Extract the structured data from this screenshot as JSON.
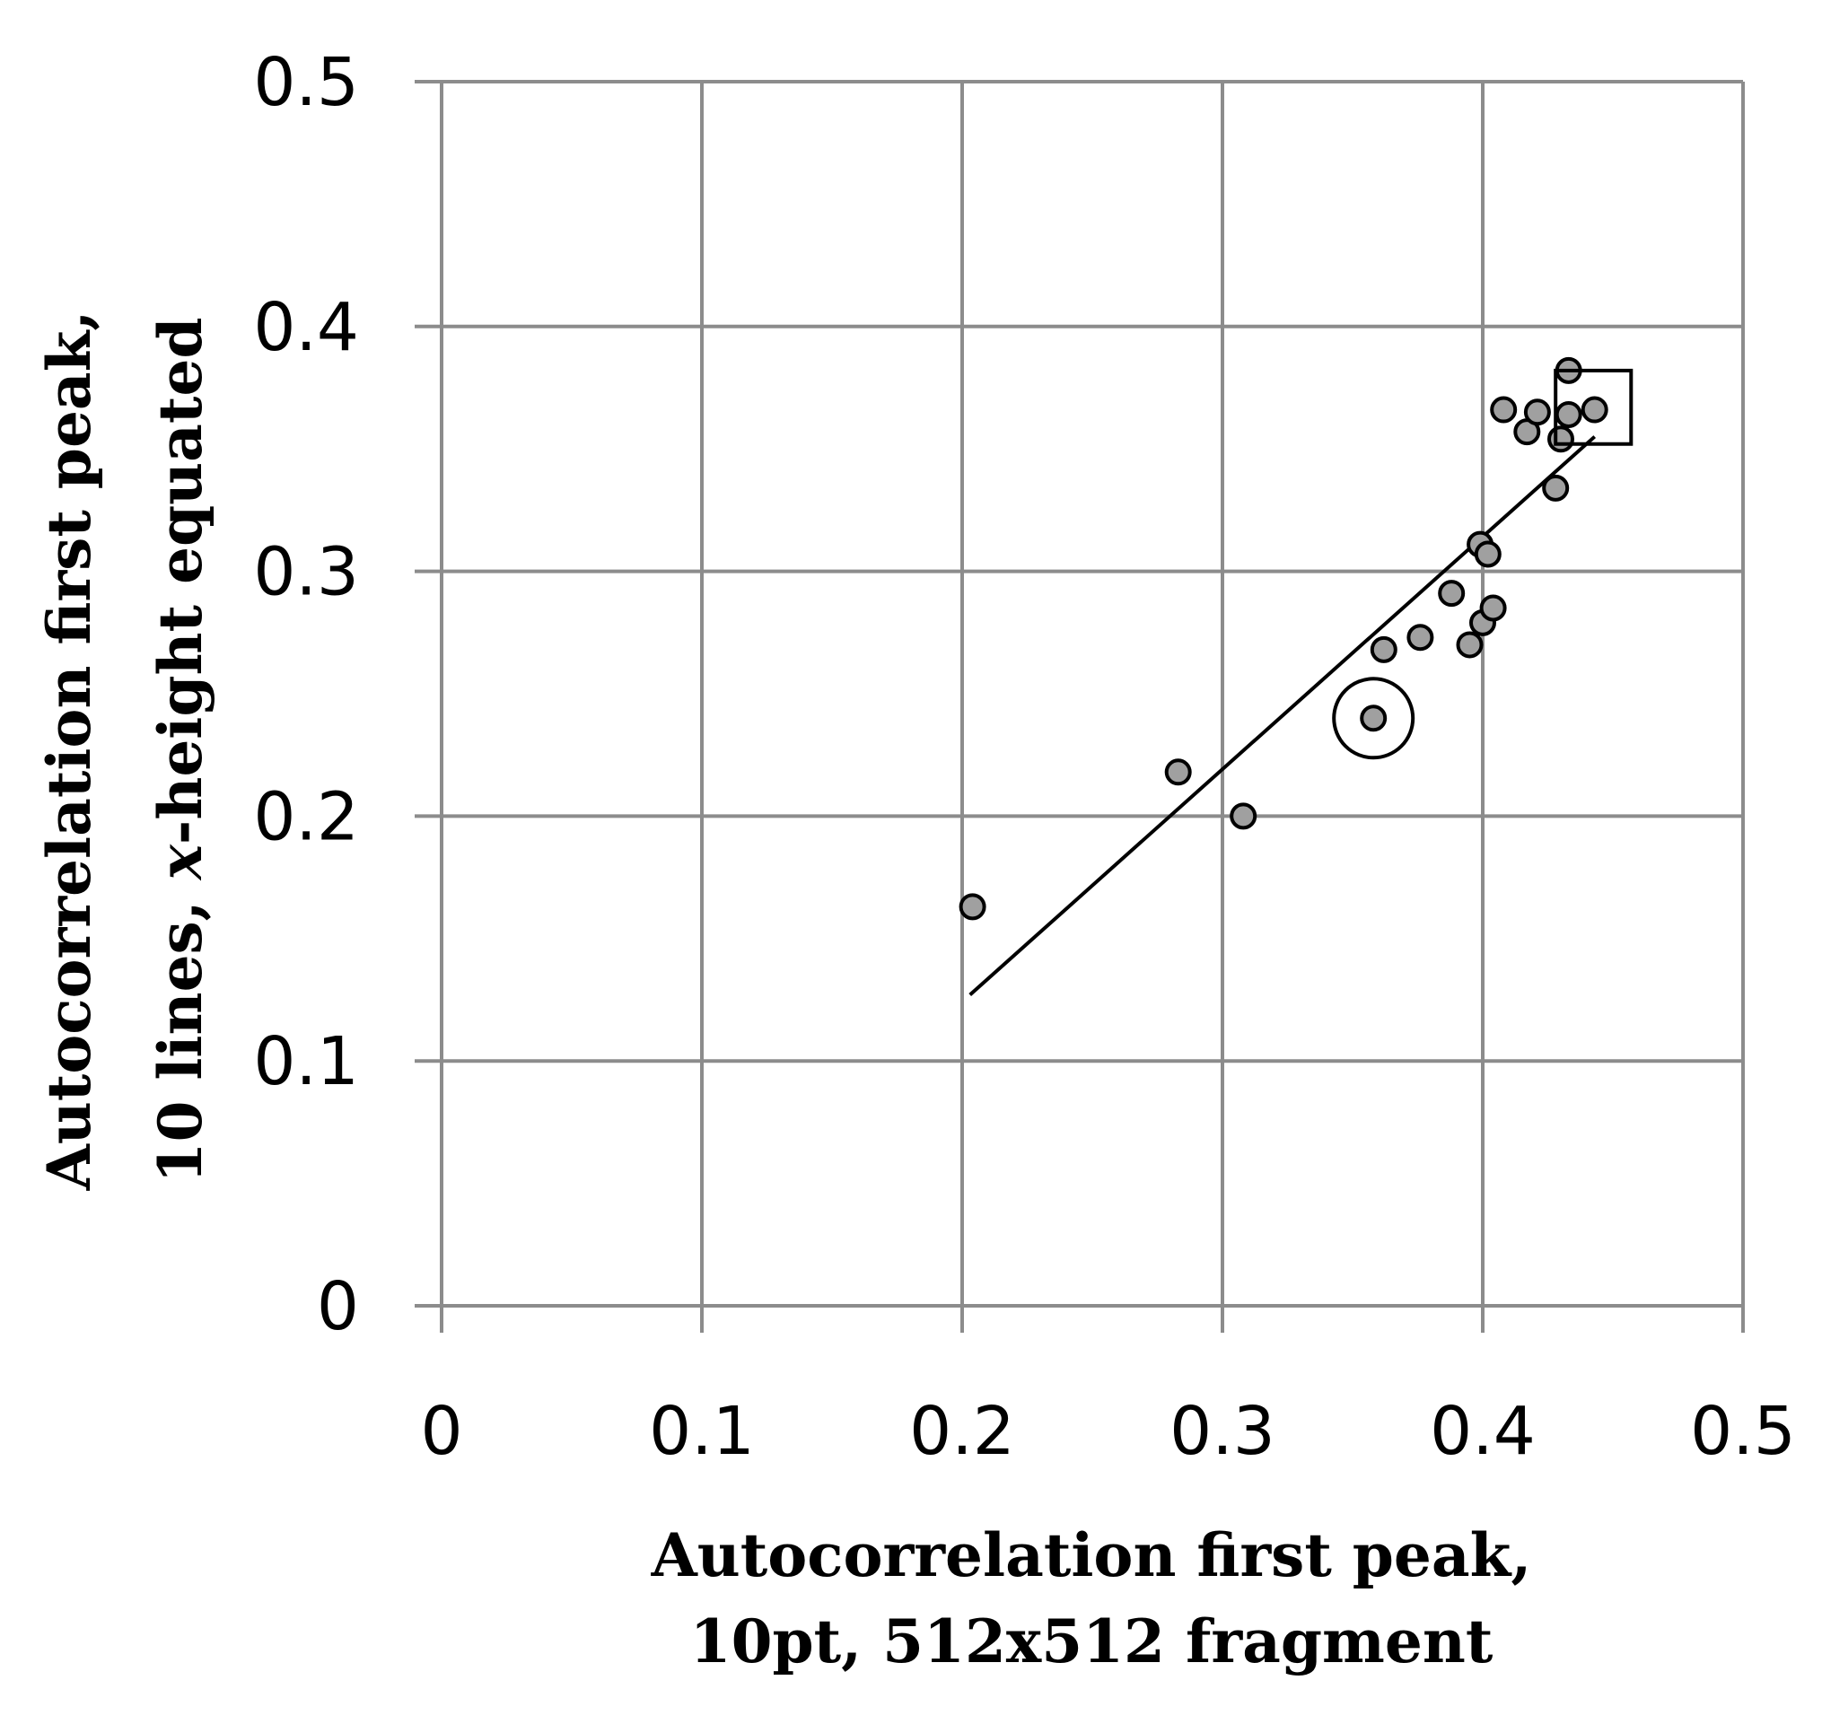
{
  "chart_data": {
    "type": "scatter",
    "title": "",
    "xlabel_lines": [
      "Autocorrelation first peak,",
      "10pt, 512x512 fragment"
    ],
    "ylabel_line1": "Autocorrelation first peak,",
    "ylabel_line2_parts": [
      "10 lines, ",
      "x",
      "-height equated"
    ],
    "xlim": [
      0,
      0.5
    ],
    "ylim": [
      0,
      0.5
    ],
    "x_ticks": [
      "0",
      "0.1",
      "0.2",
      "0.3",
      "0.4",
      "0.5"
    ],
    "y_ticks": [
      "0",
      "0.1",
      "0.2",
      "0.3",
      "0.4",
      "0.5"
    ],
    "grid": true,
    "legend": "none",
    "marker_color": "#a0a0a0",
    "marker_edge_color": "#000000",
    "grid_color": "#8c8c8c",
    "series": [
      {
        "points": [
          {
            "x": 0.204,
            "y": 0.163
          },
          {
            "x": 0.283,
            "y": 0.218
          },
          {
            "x": 0.308,
            "y": 0.2
          },
          {
            "x": 0.358,
            "y": 0.24
          },
          {
            "x": 0.362,
            "y": 0.268
          },
          {
            "x": 0.376,
            "y": 0.273
          },
          {
            "x": 0.388,
            "y": 0.291
          },
          {
            "x": 0.395,
            "y": 0.27
          },
          {
            "x": 0.399,
            "y": 0.311
          },
          {
            "x": 0.402,
            "y": 0.307
          },
          {
            "x": 0.4,
            "y": 0.279
          },
          {
            "x": 0.404,
            "y": 0.285
          },
          {
            "x": 0.408,
            "y": 0.366
          },
          {
            "x": 0.417,
            "y": 0.357
          },
          {
            "x": 0.421,
            "y": 0.365
          },
          {
            "x": 0.428,
            "y": 0.334
          },
          {
            "x": 0.43,
            "y": 0.354
          },
          {
            "x": 0.433,
            "y": 0.382
          },
          {
            "x": 0.433,
            "y": 0.364
          },
          {
            "x": 0.443,
            "y": 0.366
          }
        ]
      }
    ],
    "trendline": {
      "x": [
        0.203,
        0.443
      ],
      "y": [
        0.127,
        0.355
      ]
    },
    "annotations": [
      {
        "type": "circle",
        "x": 0.358,
        "y": 0.24
      },
      {
        "type": "square",
        "x_range": [
          0.428,
          0.457
        ],
        "y_range": [
          0.352,
          0.382
        ]
      }
    ]
  }
}
